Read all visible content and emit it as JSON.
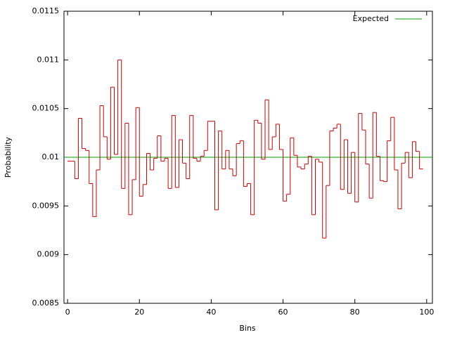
{
  "chart_data": {
    "type": "step",
    "xlabel": "Bins",
    "ylabel": "Probability",
    "x": [
      0,
      1,
      2,
      3,
      4,
      5,
      6,
      7,
      8,
      9,
      10,
      11,
      12,
      13,
      14,
      15,
      16,
      17,
      18,
      19,
      20,
      21,
      22,
      23,
      24,
      25,
      26,
      27,
      28,
      29,
      30,
      31,
      32,
      33,
      34,
      35,
      36,
      37,
      38,
      39,
      40,
      41,
      42,
      43,
      44,
      45,
      46,
      47,
      48,
      49,
      50,
      51,
      52,
      53,
      54,
      55,
      56,
      57,
      58,
      59,
      60,
      61,
      62,
      63,
      64,
      65,
      66,
      67,
      68,
      69,
      70,
      71,
      72,
      73,
      74,
      75,
      76,
      77,
      78,
      79,
      80,
      81,
      82,
      83,
      84,
      85,
      86,
      87,
      88,
      89,
      90,
      91,
      92,
      93,
      94,
      95,
      96,
      97,
      98
    ],
    "values": [
      0.00996,
      0.00996,
      0.00978,
      0.0104,
      0.01009,
      0.01007,
      0.00973,
      0.00939,
      0.00987,
      0.01053,
      0.01021,
      0.00998,
      0.01072,
      0.01003,
      0.011,
      0.00968,
      0.01035,
      0.00941,
      0.00977,
      0.01051,
      0.0096,
      0.00972,
      0.01004,
      0.00987,
      0.00999,
      0.01022,
      0.00996,
      0.00999,
      0.00968,
      0.01043,
      0.00969,
      0.01018,
      0.00994,
      0.00978,
      0.01043,
      0.00999,
      0.00996,
      0.01001,
      0.01007,
      0.01037,
      0.01037,
      0.00946,
      0.01027,
      0.00988,
      0.01007,
      0.00988,
      0.00981,
      0.01014,
      0.01017,
      0.0097,
      0.00973,
      0.00941,
      0.01038,
      0.01035,
      0.00998,
      0.01059,
      0.01008,
      0.01021,
      0.01034,
      0.01008,
      0.00955,
      0.00962,
      0.0102,
      0.01002,
      0.0099,
      0.00988,
      0.00993,
      0.01001,
      0.00941,
      0.00998,
      0.00995,
      0.00917,
      0.00971,
      0.01027,
      0.0103,
      0.01034,
      0.00967,
      0.01018,
      0.00963,
      0.01005,
      0.00954,
      0.01045,
      0.01028,
      0.00993,
      0.00958,
      0.01046,
      0.01001,
      0.00976,
      0.00975,
      0.01017,
      0.01041,
      0.00987,
      0.00947,
      0.00994,
      0.01005,
      0.00979,
      0.01016,
      0.01006,
      0.00988
    ],
    "color": "#cc0000",
    "reference_lines": [
      {
        "name": "Expected",
        "value": 0.01,
        "color": "#00a000"
      }
    ],
    "xlim": [
      -1,
      101.6
    ],
    "xticks": [
      0,
      20,
      40,
      60,
      80,
      100
    ],
    "ylim": [
      0.0085,
      0.0115
    ],
    "yticks": [
      0.0085,
      0.009,
      0.0095,
      0.01,
      0.0105,
      0.011,
      0.0115
    ],
    "legend": "top-right"
  }
}
